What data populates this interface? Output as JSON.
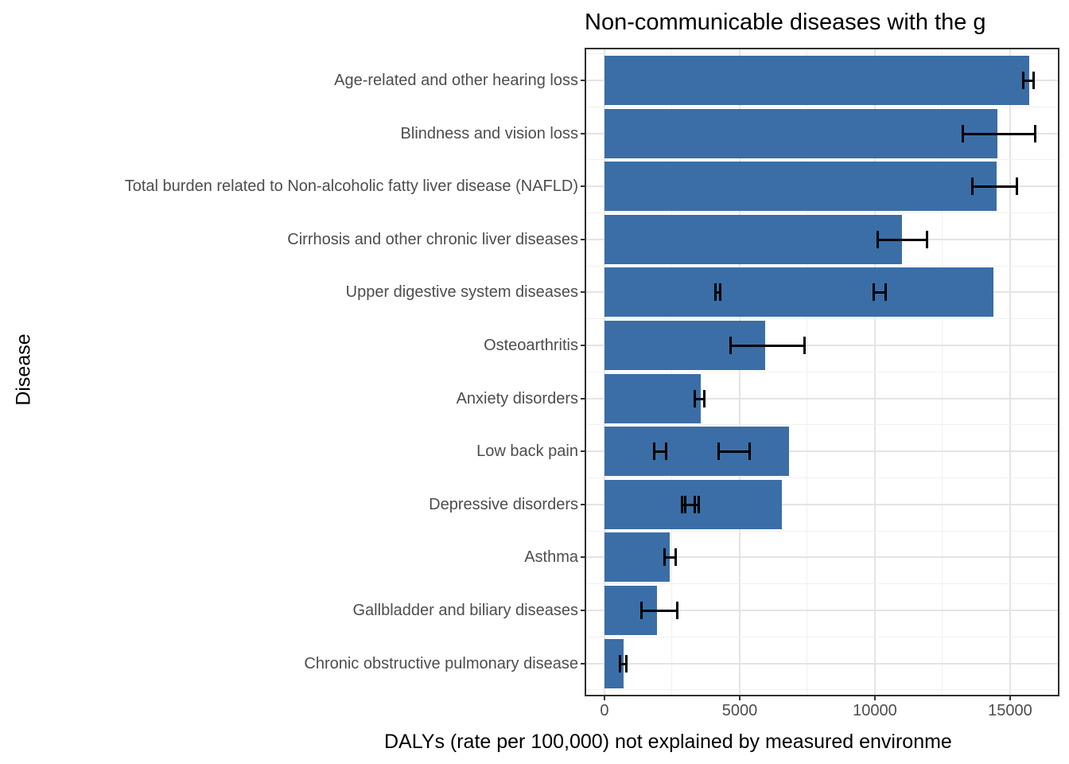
{
  "title": "Non-communicable diseases with the g",
  "x_axis": {
    "label": "DALYs (rate per 100,000) not explained by measured environme",
    "tick_labels": [
      "0",
      "5000",
      "10000",
      "15000"
    ]
  },
  "y_axis": {
    "label": "Disease"
  },
  "chart_data": {
    "type": "bar",
    "orientation": "horizontal",
    "title": "Non-communicable diseases with the g",
    "xlabel": "DALYs (rate per 100,000) not explained by measured environme",
    "ylabel": "Disease",
    "categories": [
      "Age-related and other hearing loss",
      "Blindness and vision loss",
      "Total burden related to Non-alcoholic fatty liver disease (NAFLD)",
      "Cirrhosis and other chronic liver diseases",
      "Upper digestive system diseases",
      "Osteoarthritis",
      "Anxiety disorders",
      "Low back pain",
      "Depressive disorders",
      "Asthma",
      "Gallbladder and biliary diseases",
      "Chronic obstructive pulmonary disease"
    ],
    "values": [
      15700,
      14530,
      14500,
      11000,
      14380,
      5940,
      3560,
      6820,
      6560,
      2410,
      1940,
      710
    ],
    "error_bars": [
      [
        [
          15450,
          15920
        ]
      ],
      [
        [
          13210,
          15970
        ]
      ],
      [
        [
          13560,
          15290
        ]
      ],
      [
        [
          10060,
          11970
        ]
      ],
      [
        [
          4060,
          4320
        ],
        [
          9910,
          10440
        ]
      ],
      [
        [
          4620,
          7440
        ]
      ],
      [
        [
          3290,
          3740
        ]
      ],
      [
        [
          1790,
          2320
        ],
        [
          4180,
          5410
        ]
      ],
      [
        [
          2820,
          3380
        ],
        [
          2940,
          3530
        ]
      ],
      [
        [
          2180,
          2680
        ]
      ],
      [
        [
          1320,
          2740
        ]
      ],
      [
        [
          530,
          850
        ]
      ]
    ],
    "x_ticks": [
      0,
      5000,
      10000,
      15000
    ],
    "x_minor_gridlines": [
      2500,
      7500,
      12500
    ],
    "xlim_panel": [
      -676,
      16765
    ],
    "grid": true,
    "legend_position": "none",
    "colors": {
      "bar": "#3B6EA7",
      "error_bar": "#000000",
      "grid_major": "#E4E4E4",
      "grid_minor": "#F0F0F0",
      "panel_border": "#2F2F2F",
      "axis_text": "#4D4D4D",
      "tick_mark": "#333333",
      "title_text": "#000000"
    }
  }
}
